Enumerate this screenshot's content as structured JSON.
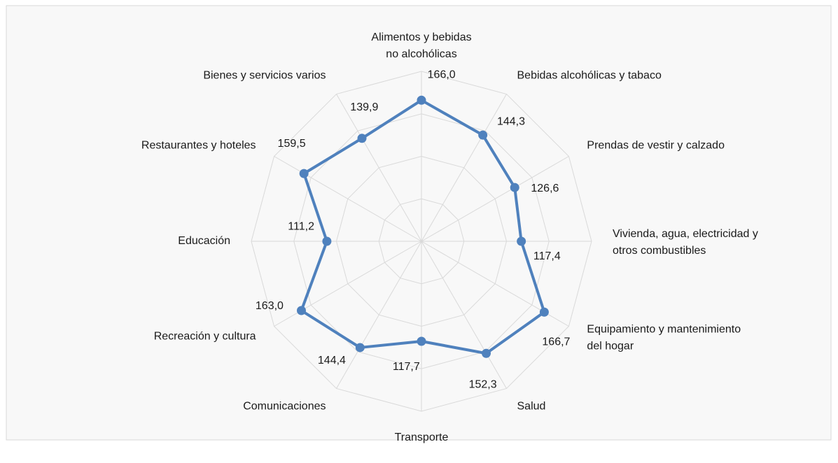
{
  "chart_data": {
    "type": "radar",
    "categories": [
      "Alimentos y bebidas no alcohólicas",
      "Bebidas alcohólicas y tabaco",
      "Prendas de vestir y calzado",
      "Vivienda, agua, electricidad y otros combustibles",
      "Equipamiento y mantenimiento del hogar",
      "Salud",
      "Transporte",
      "Comunicaciones",
      "Recreación y cultura",
      "Educación",
      "Restaurantes y hoteles",
      "Bienes y servicios varios"
    ],
    "series": [
      {
        "color": "#4f81bd",
        "values": [
          166.0,
          144.3,
          126.6,
          117.4,
          166.7,
          152.3,
          117.7,
          144.4,
          163.0,
          111.2,
          159.5,
          139.9
        ],
        "value_labels": [
          "166,0",
          "144,3",
          "126,6",
          "117,4",
          "166,7",
          "152,3",
          "117,7",
          "144,4",
          "163,0",
          "111,2",
          "159,5",
          "139,9"
        ]
      }
    ],
    "ylim": [
      0,
      200
    ],
    "yticks": [
      0,
      50,
      100,
      150,
      200
    ],
    "grid": true
  }
}
